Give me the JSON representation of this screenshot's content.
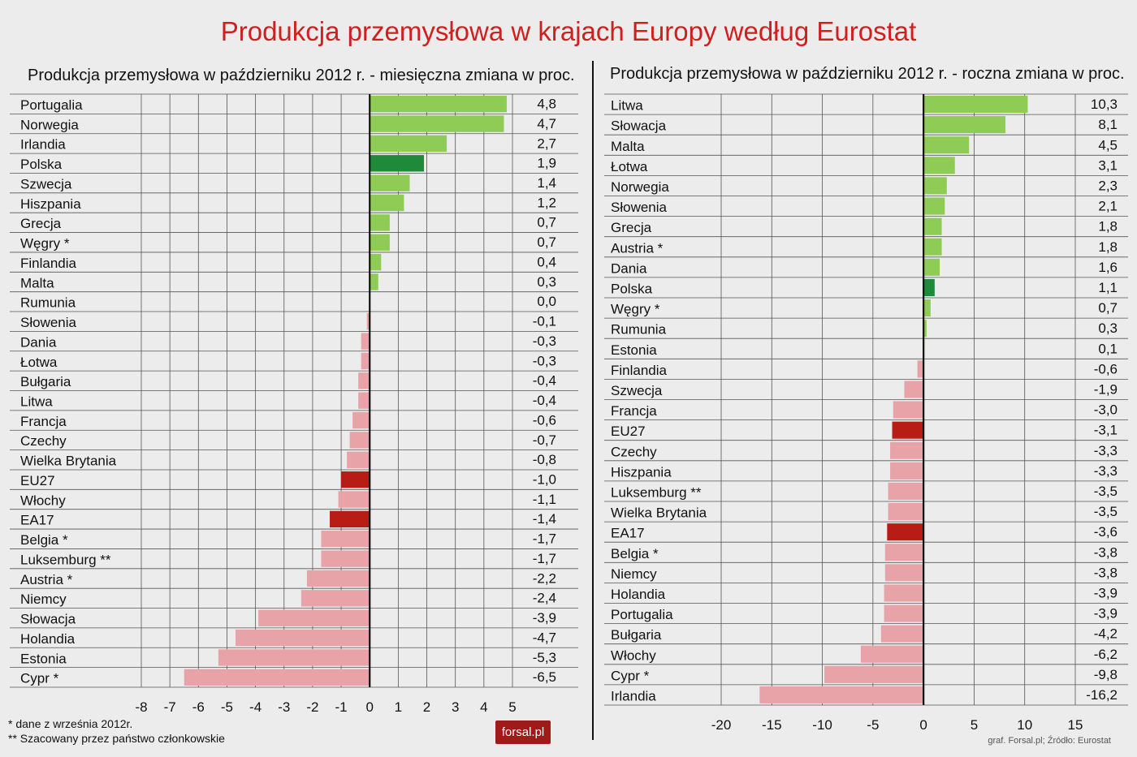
{
  "title": "Produkcja przemysłowa w krajach Europy według Eurostat",
  "footnotes": [
    "* dane z września 2012r.",
    "** Szacowany przez państwo członkowskie"
  ],
  "source": "graf. Forsal.pl; Źródło: Eurostat",
  "logo": "forsal.pl",
  "colors": {
    "positive": "#8fcc55",
    "positive_highlight": "#1e8a3a",
    "negative": "#e8a3a8",
    "negative_highlight": "#b81d15"
  },
  "chart_data": [
    {
      "type": "bar",
      "orientation": "horizontal",
      "title": "Produkcja przemysłowa w październiku 2012 r. - miesięczna zmiana w proc.",
      "xlim": [
        -8,
        5
      ],
      "xticks": [
        "-8",
        "-7",
        "-6",
        "-5",
        "-4",
        "-3",
        "-2",
        "-1",
        "0",
        "1",
        "2",
        "3",
        "4",
        "5"
      ],
      "categories": [
        "Portugalia",
        "Norwegia",
        "Irlandia",
        "Polska",
        "Szwecja",
        "Hiszpania",
        "Grecja",
        "Węgry *",
        "Finlandia",
        "Malta",
        "Rumunia",
        "Słowenia",
        "Dania",
        "Łotwa",
        "Bułgaria",
        "Litwa",
        "Francja",
        "Czechy",
        "Wielka Brytania",
        "EU27",
        "Włochy",
        "EA17",
        "Belgia *",
        "Luksemburg **",
        "Austria *",
        "Niemcy",
        "Słowacja",
        "Holandia",
        "Estonia",
        "Cypr *"
      ],
      "values": [
        4.8,
        4.7,
        2.7,
        1.9,
        1.4,
        1.2,
        0.7,
        0.7,
        0.4,
        0.3,
        0.0,
        -0.1,
        -0.3,
        -0.3,
        -0.4,
        -0.4,
        -0.6,
        -0.7,
        -0.8,
        -1.0,
        -1.1,
        -1.4,
        -1.7,
        -1.7,
        -2.2,
        -2.4,
        -3.9,
        -4.7,
        -5.3,
        -6.5
      ],
      "labels": [
        "4,8",
        "4,7",
        "2,7",
        "1,9",
        "1,4",
        "1,2",
        "0,7",
        "0,7",
        "0,4",
        "0,3",
        "0,0",
        "-0,1",
        "-0,3",
        "-0,3",
        "-0,4",
        "-0,4",
        "-0,6",
        "-0,7",
        "-0,8",
        "-1,0",
        "-1,1",
        "-1,4",
        "-1,7",
        "-1,7",
        "-2,2",
        "-2,4",
        "-3,9",
        "-4,7",
        "-5,3",
        "-6,5"
      ],
      "highlight": [
        "Polska",
        "EU27",
        "EA17"
      ]
    },
    {
      "type": "bar",
      "orientation": "horizontal",
      "title": "Produkcja przemysłowa w październiku 2012 r. - roczna zmiana w proc.",
      "xlim": [
        -20,
        15
      ],
      "xticks": [
        "-20",
        "-15",
        "-10",
        "-5",
        "0",
        "5",
        "10",
        "15"
      ],
      "categories": [
        "Litwa",
        "Słowacja",
        "Malta",
        "Łotwa",
        "Norwegia",
        "Słowenia",
        "Grecja",
        "Austria *",
        "Dania",
        "Polska",
        "Węgry *",
        "Rumunia",
        "Estonia",
        "Finlandia",
        "Szwecja",
        "Francja",
        "EU27",
        "Czechy",
        "Hiszpania",
        "Luksemburg **",
        "Wielka Brytania",
        "EA17",
        "Belgia *",
        "Niemcy",
        "Holandia",
        "Portugalia",
        "Bułgaria",
        "Włochy",
        "Cypr *",
        "Irlandia"
      ],
      "values": [
        10.3,
        8.1,
        4.5,
        3.1,
        2.3,
        2.1,
        1.8,
        1.8,
        1.6,
        1.1,
        0.7,
        0.3,
        0.1,
        -0.6,
        -1.9,
        -3.0,
        -3.1,
        -3.3,
        -3.3,
        -3.5,
        -3.5,
        -3.6,
        -3.8,
        -3.8,
        -3.9,
        -3.9,
        -4.2,
        -6.2,
        -9.8,
        -16.2
      ],
      "labels": [
        "10,3",
        "8,1",
        "4,5",
        "3,1",
        "2,3",
        "2,1",
        "1,8",
        "1,8",
        "1,6",
        "1,1",
        "0,7",
        "0,3",
        "0,1",
        "-0,6",
        "-1,9",
        "-3,0",
        "-3,1",
        "-3,3",
        "-3,3",
        "-3,5",
        "-3,5",
        "-3,6",
        "-3,8",
        "-3,8",
        "-3,9",
        "-3,9",
        "-4,2",
        "-6,2",
        "-9,8",
        "-16,2"
      ],
      "highlight": [
        "Polska",
        "EU27",
        "EA17"
      ]
    }
  ]
}
